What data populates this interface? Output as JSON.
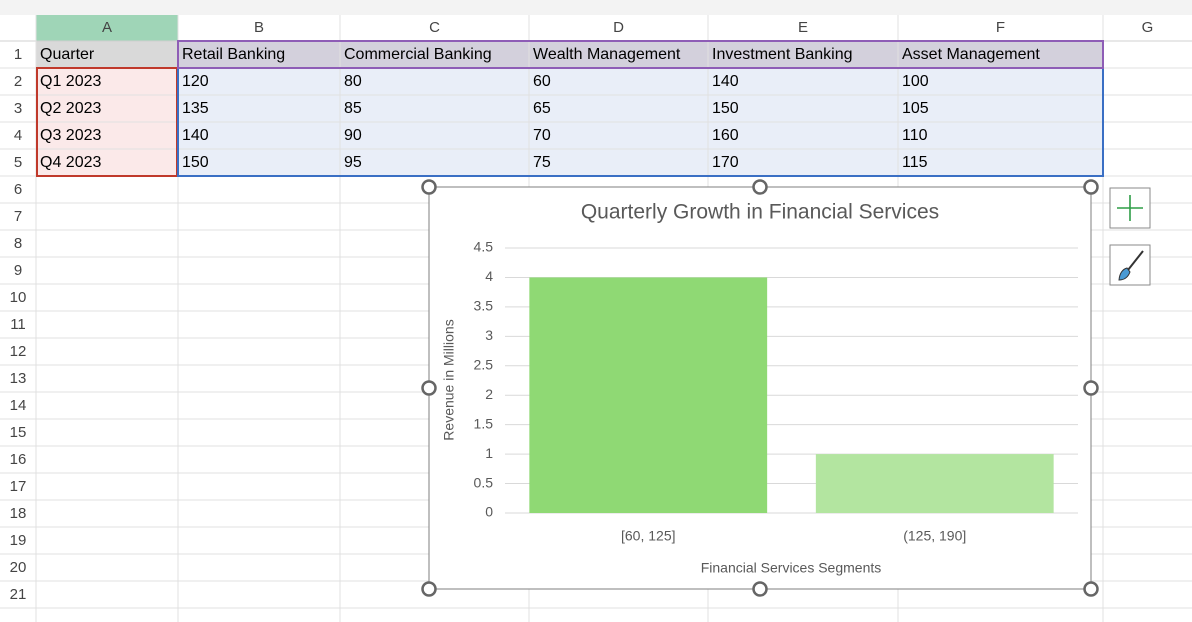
{
  "sheet": {
    "columns": [
      "A",
      "B",
      "C",
      "D",
      "E",
      "F",
      "G"
    ],
    "row_numbers": [
      1,
      2,
      3,
      4,
      5,
      6,
      7,
      8,
      9,
      10,
      11,
      12,
      13,
      14,
      15,
      16,
      17,
      18,
      19,
      20,
      21
    ],
    "rows": [
      [
        "Quarter",
        "Retail Banking",
        "Commercial Banking",
        "Wealth Management",
        "Investment Banking",
        "Asset Management"
      ],
      [
        "Q1 2023",
        120,
        80,
        60,
        140,
        100
      ],
      [
        "Q2 2023",
        135,
        85,
        65,
        150,
        105
      ],
      [
        "Q3 2023",
        140,
        90,
        70,
        160,
        110
      ],
      [
        "Q4 2023",
        150,
        95,
        75,
        170,
        115
      ]
    ]
  },
  "chart_data": {
    "type": "bar",
    "title": "Quarterly Growth in Financial Services",
    "x_label": "Financial Services Segments",
    "y_label": "Revenue in Millions",
    "categories": [
      "[60, 125]",
      "(125, 190]"
    ],
    "values": [
      4,
      1
    ],
    "colors": [
      "#8fd974",
      "#b3e5a0"
    ],
    "ylim": [
      0,
      4.5
    ],
    "yticks": [
      0,
      0.5,
      1,
      1.5,
      2,
      2.5,
      3,
      3.5,
      4,
      4.5
    ],
    "grid": true
  }
}
